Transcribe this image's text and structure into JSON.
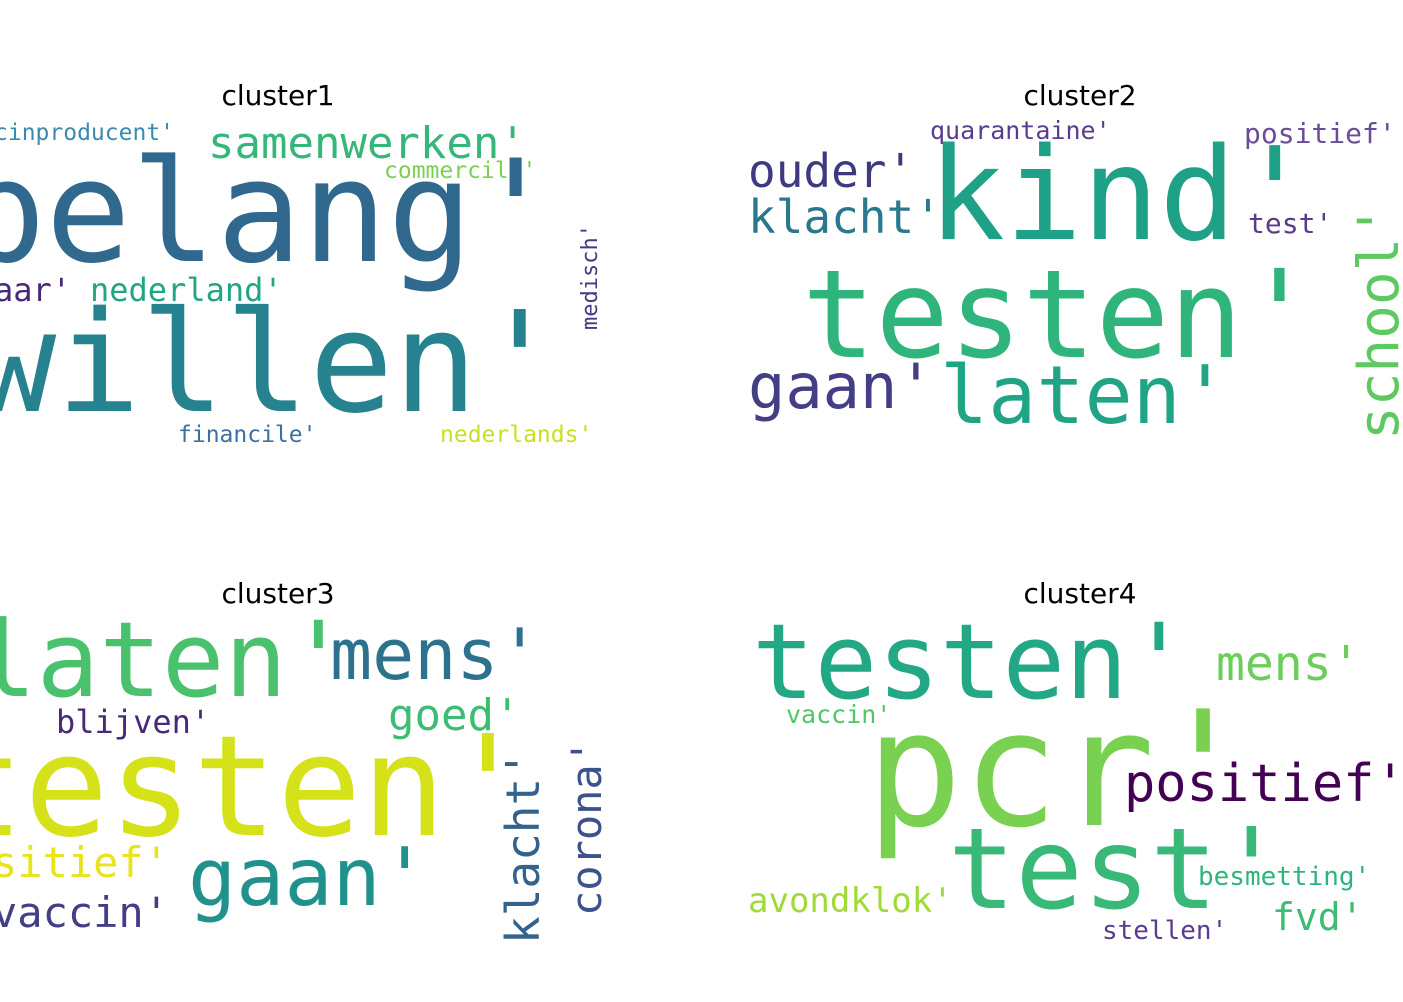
{
  "panels": [
    {
      "title": "cluster1",
      "words": [
        {
          "text": "cinproducent'",
          "color": "#3b8bb0"
        },
        {
          "text": "samenwerken'",
          "color": "#35b779"
        },
        {
          "text": "commercile'",
          "color": "#7ad151"
        },
        {
          "text": "belang'",
          "color": "#31688e"
        },
        {
          "text": "medisch'",
          "color": "#443a83"
        },
        {
          "text": "aar'",
          "color": "#482878"
        },
        {
          "text": "nederland'",
          "color": "#21a585"
        },
        {
          "text": "willen'",
          "color": "#26828e"
        },
        {
          "text": "financile'",
          "color": "#3e6fa3"
        },
        {
          "text": "nederlands'",
          "color": "#c8e020"
        }
      ]
    },
    {
      "title": "cluster2",
      "words": [
        {
          "text": "quarantaine'",
          "color": "#5b3b8f"
        },
        {
          "text": "positief'",
          "color": "#6b4c9a"
        },
        {
          "text": "ouder'",
          "color": "#3e3a7f"
        },
        {
          "text": "kind'",
          "color": "#1fa187"
        },
        {
          "text": "klacht'",
          "color": "#2a788e"
        },
        {
          "text": "test'",
          "color": "#5a3a8a"
        },
        {
          "text": "school'",
          "color": "#5ec962"
        },
        {
          "text": "testen'",
          "color": "#2fb47c"
        },
        {
          "text": "gaan'",
          "color": "#433e85"
        },
        {
          "text": "laten'",
          "color": "#20a486"
        }
      ]
    },
    {
      "title": "cluster3",
      "words": [
        {
          "text": "laten'",
          "color": "#4ac16d"
        },
        {
          "text": "mens'",
          "color": "#2c728e"
        },
        {
          "text": "blijven'",
          "color": "#482878"
        },
        {
          "text": "goed'",
          "color": "#3dbc74"
        },
        {
          "text": "testen'",
          "color": "#d5e21a"
        },
        {
          "text": "corona'",
          "color": "#3b528b"
        },
        {
          "text": "klacht'",
          "color": "#33638d"
        },
        {
          "text": "sitief'",
          "color": "#e8e419"
        },
        {
          "text": "gaan'",
          "color": "#21918c"
        },
        {
          "text": "vaccin'",
          "color": "#433e85"
        }
      ]
    },
    {
      "title": "cluster4",
      "words": [
        {
          "text": "testen'",
          "color": "#22a884"
        },
        {
          "text": "mens'",
          "color": "#6ccd5a"
        },
        {
          "text": "vaccin'",
          "color": "#52c569"
        },
        {
          "text": "pcr'",
          "color": "#7ad151"
        },
        {
          "text": "positief'",
          "color": "#440154"
        },
        {
          "text": "test'",
          "color": "#38b977"
        },
        {
          "text": "besmetting'",
          "color": "#2fb47c"
        },
        {
          "text": "avondklok'",
          "color": "#a0da39"
        },
        {
          "text": "fvd'",
          "color": "#3dbc74"
        },
        {
          "text": "stellen'",
          "color": "#5b3b8f"
        }
      ]
    }
  ]
}
